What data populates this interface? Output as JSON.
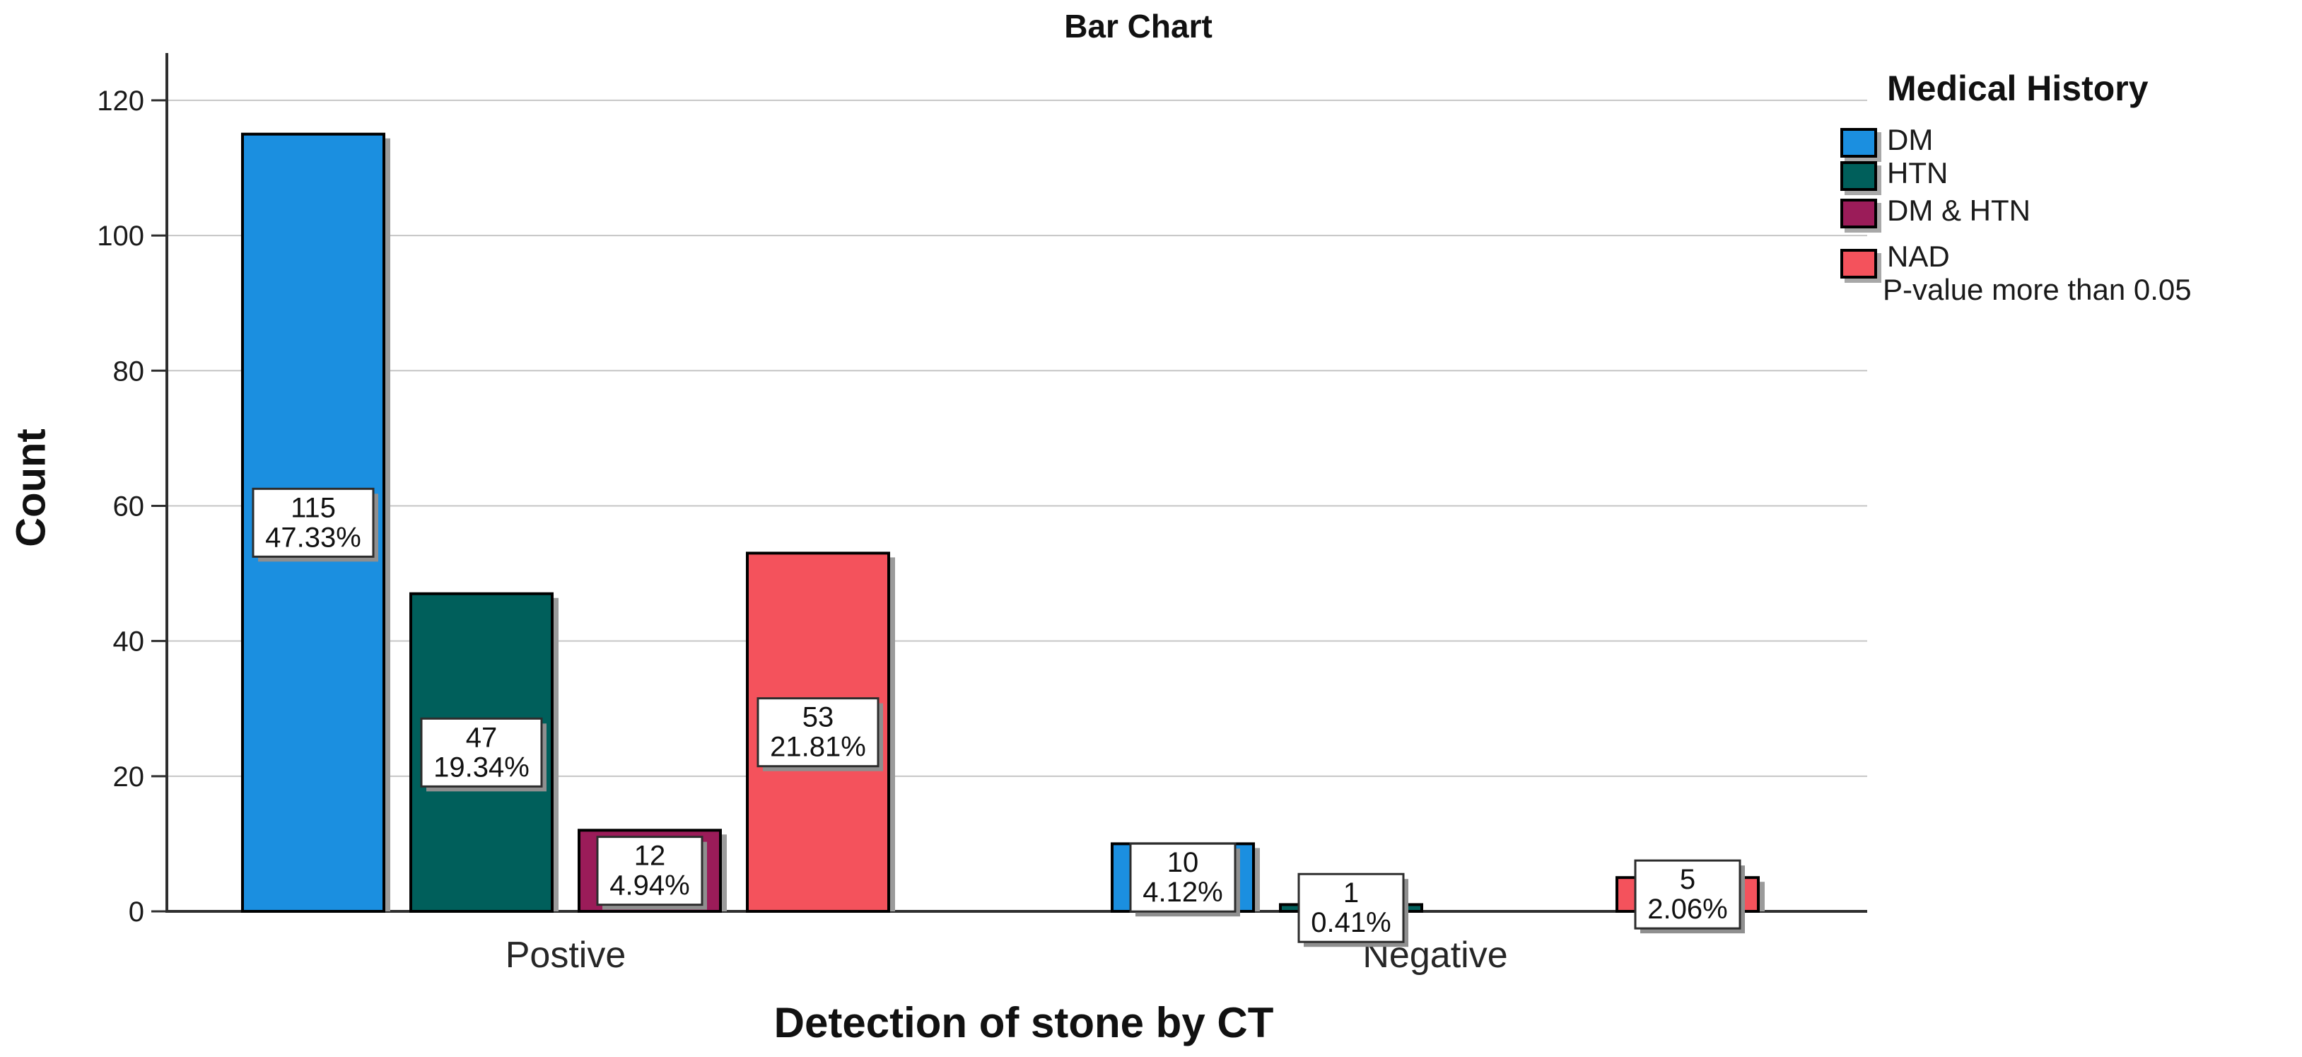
{
  "chart_data": {
    "type": "bar",
    "title": "Bar Chart",
    "xlabel": "Detection of stone by CT",
    "ylabel": "Count",
    "categories": [
      "Postive",
      "Negative"
    ],
    "series": [
      {
        "name": "DM",
        "color": "#1B8FE0",
        "values": [
          115,
          10
        ],
        "percents": [
          "47.33%",
          "4.12%"
        ]
      },
      {
        "name": "HTN",
        "color": "#005F5B",
        "values": [
          47,
          1
        ],
        "percents": [
          "19.34%",
          "0.41%"
        ]
      },
      {
        "name": "DM & HTN",
        "color": "#9B1C59",
        "values": [
          12,
          0
        ],
        "percents": [
          "4.94%",
          null
        ]
      },
      {
        "name": "NAD",
        "color": "#F4525C",
        "values": [
          53,
          5
        ],
        "percents": [
          "21.81%",
          "2.06%"
        ]
      }
    ],
    "yticks": [
      0,
      20,
      40,
      60,
      80,
      100,
      120
    ],
    "ylim": [
      0,
      127
    ],
    "grid": true,
    "grid_color": "#c6c6c6",
    "axis_color": "#2e2e2e",
    "bar_border_color": "#000000",
    "label_box_border_color": "#2d2d2d",
    "shadow_color": "#9b9b9b",
    "legend_title": "Medical History",
    "legend_note": "P-value more than 0.05",
    "legend_position": "right"
  }
}
